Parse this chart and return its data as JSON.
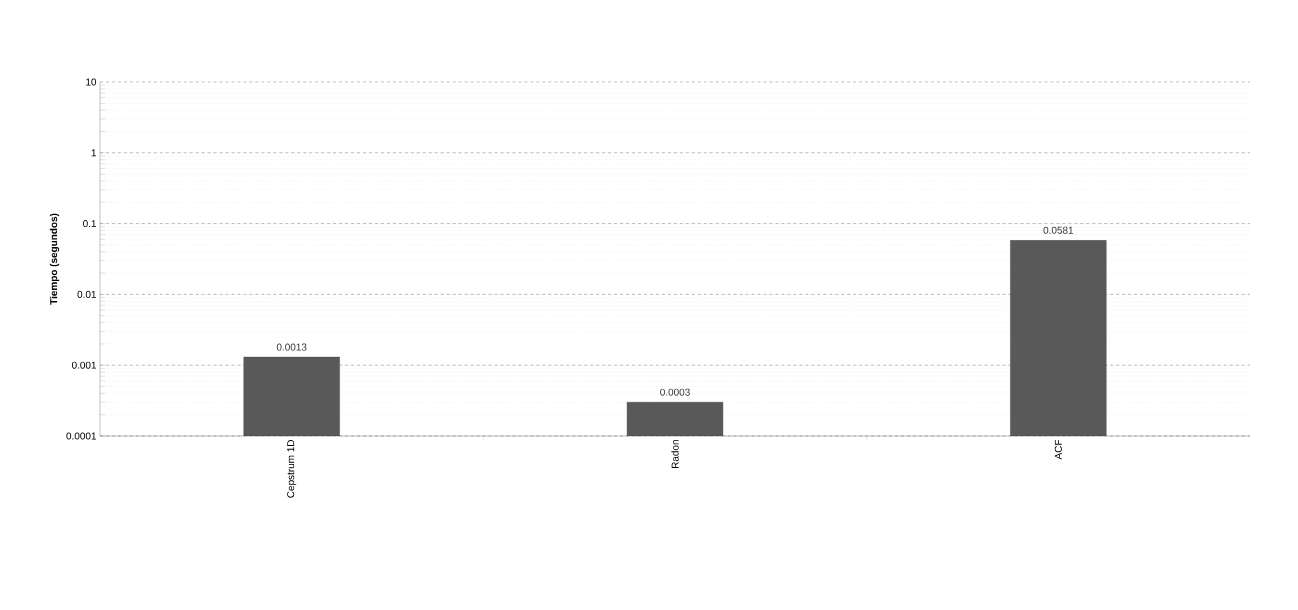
{
  "chart_data": {
    "type": "bar",
    "ylabel": "Tiempo (segundos)",
    "categories": [
      "Cepstrum 1D",
      "Radon",
      "ACF"
    ],
    "values": [
      0.0013,
      0.0003,
      0.0581
    ],
    "color": "#595959",
    "log": "y",
    "ylim": [
      0.0001,
      10
    ],
    "yticks": [
      0.0001,
      0.001,
      0.01,
      0.1,
      1,
      10
    ],
    "grid": "y",
    "data_labels": true
  }
}
